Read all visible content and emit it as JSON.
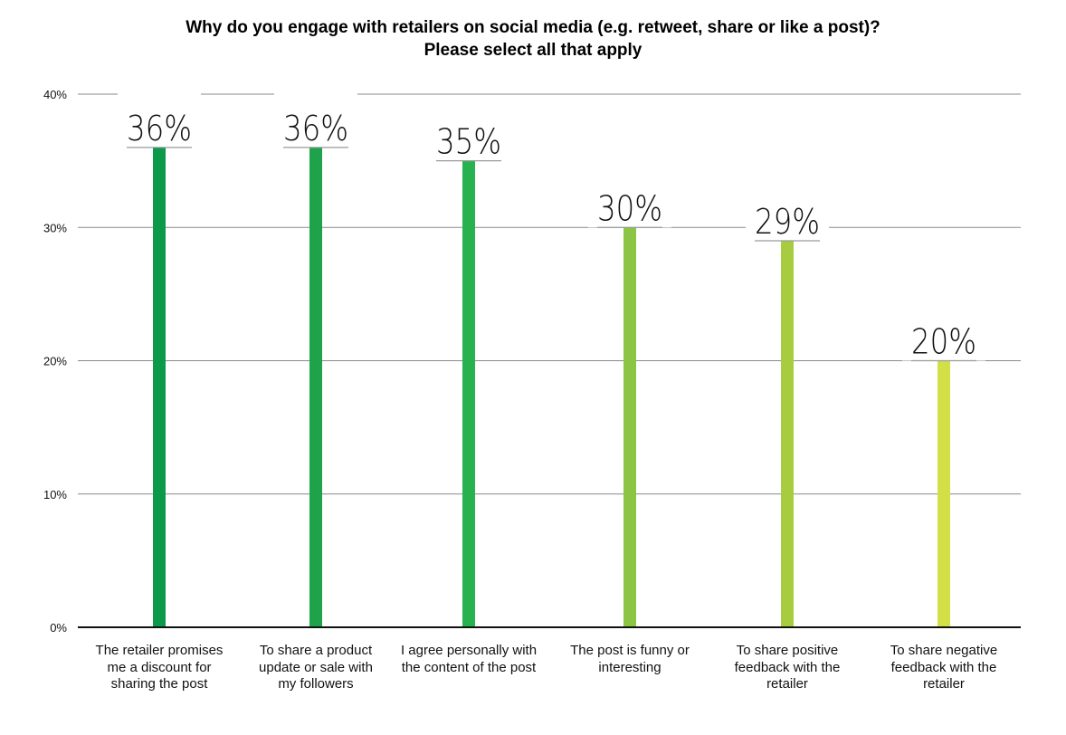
{
  "chart_data": {
    "type": "bar",
    "title": [
      "Why do you engage with retailers on social media (e.g. retweet, share or like a post)?",
      "Please select all that apply"
    ],
    "categories": [
      "The retailer promises\nme a discount for\nsharing the post",
      "To share a product\nupdate or sale with\nmy followers",
      "I agree personally with\nthe content of the post",
      "The post is funny or\ninteresting",
      "To share positive\nfeedback with the\nretailer",
      "To share negative\nfeedback with the\nretailer"
    ],
    "values": [
      36,
      36,
      35,
      30,
      29,
      20
    ],
    "data_labels": [
      "36%",
      "36%",
      "35%",
      "30%",
      "29%",
      "20%"
    ],
    "colors": [
      "#0b9a4a",
      "#1ea34b",
      "#27b24f",
      "#8cc444",
      "#a8cc3f",
      "#d3df46"
    ],
    "ylim": [
      0,
      40
    ],
    "yticks": [
      0,
      10,
      20,
      30,
      40
    ],
    "ytick_labels": [
      "0%",
      "10%",
      "20%",
      "30%",
      "40%"
    ],
    "grid": true,
    "xlabel": "",
    "ylabel": ""
  }
}
